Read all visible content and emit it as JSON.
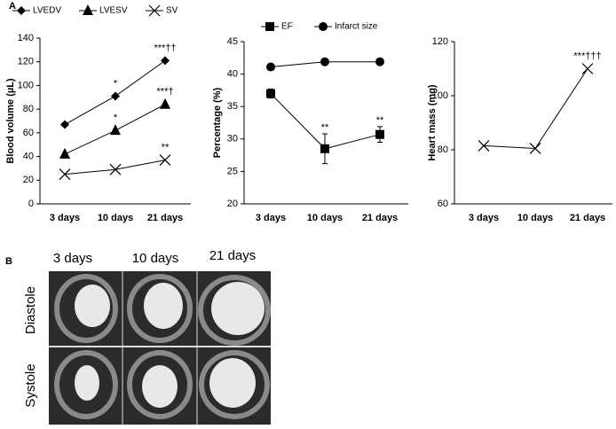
{
  "panels": {
    "a": "A",
    "b": "B"
  },
  "chart_data": [
    {
      "type": "line",
      "ylabel": "Blood volume (µL)",
      "categories": [
        "3 days",
        "10 days",
        "21 days"
      ],
      "ylim": [
        0,
        140
      ],
      "yticks": [
        0,
        20,
        40,
        60,
        80,
        100,
        120,
        140
      ],
      "legend": "top",
      "series": [
        {
          "name": "LVEDV",
          "color": "#000000",
          "marker": "diamond",
          "values": [
            67,
            91,
            121
          ],
          "labels": [
            null,
            "*",
            "***††"
          ]
        },
        {
          "name": "LVESV",
          "color": "#000000",
          "marker": "triangle",
          "values": [
            42,
            62,
            84
          ],
          "labels": [
            null,
            "*",
            "***†"
          ]
        },
        {
          "name": "SV",
          "color": "#000000",
          "marker": "x",
          "values": [
            25,
            29,
            37
          ],
          "labels": [
            null,
            null,
            "**"
          ]
        }
      ]
    },
    {
      "type": "line",
      "ylabel": "Percentage (%)",
      "categories": [
        "3 days",
        "10 days",
        "21 days"
      ],
      "ylim": [
        20,
        45
      ],
      "yticks": [
        20,
        25,
        30,
        35,
        40,
        45
      ],
      "legend": "top",
      "series": [
        {
          "name": "EF",
          "color": "#000000",
          "marker": "square",
          "values": [
            37,
            28.5,
            30.7
          ],
          "errors": [
            0.7,
            2.3,
            1.2
          ],
          "labels": [
            null,
            "**",
            "**"
          ]
        },
        {
          "name": "Infarct size",
          "color": "#000000",
          "marker": "circle",
          "values": [
            41.1,
            41.9,
            41.9
          ]
        }
      ]
    },
    {
      "type": "line",
      "ylabel": "Heart mass (mg)",
      "categories": [
        "3 days",
        "10 days",
        "21 days"
      ],
      "ylim": [
        60,
        120
      ],
      "yticks": [
        60,
        80,
        100,
        120
      ],
      "series": [
        {
          "color": "#000000",
          "marker": "x",
          "values": [
            81.5,
            80.5,
            110
          ],
          "labels": [
            null,
            null,
            "***†††"
          ]
        }
      ]
    }
  ],
  "mri": {
    "columns": [
      "3 days",
      "10 days",
      "21 days"
    ],
    "rows": [
      "Diastole",
      "Systole"
    ]
  }
}
